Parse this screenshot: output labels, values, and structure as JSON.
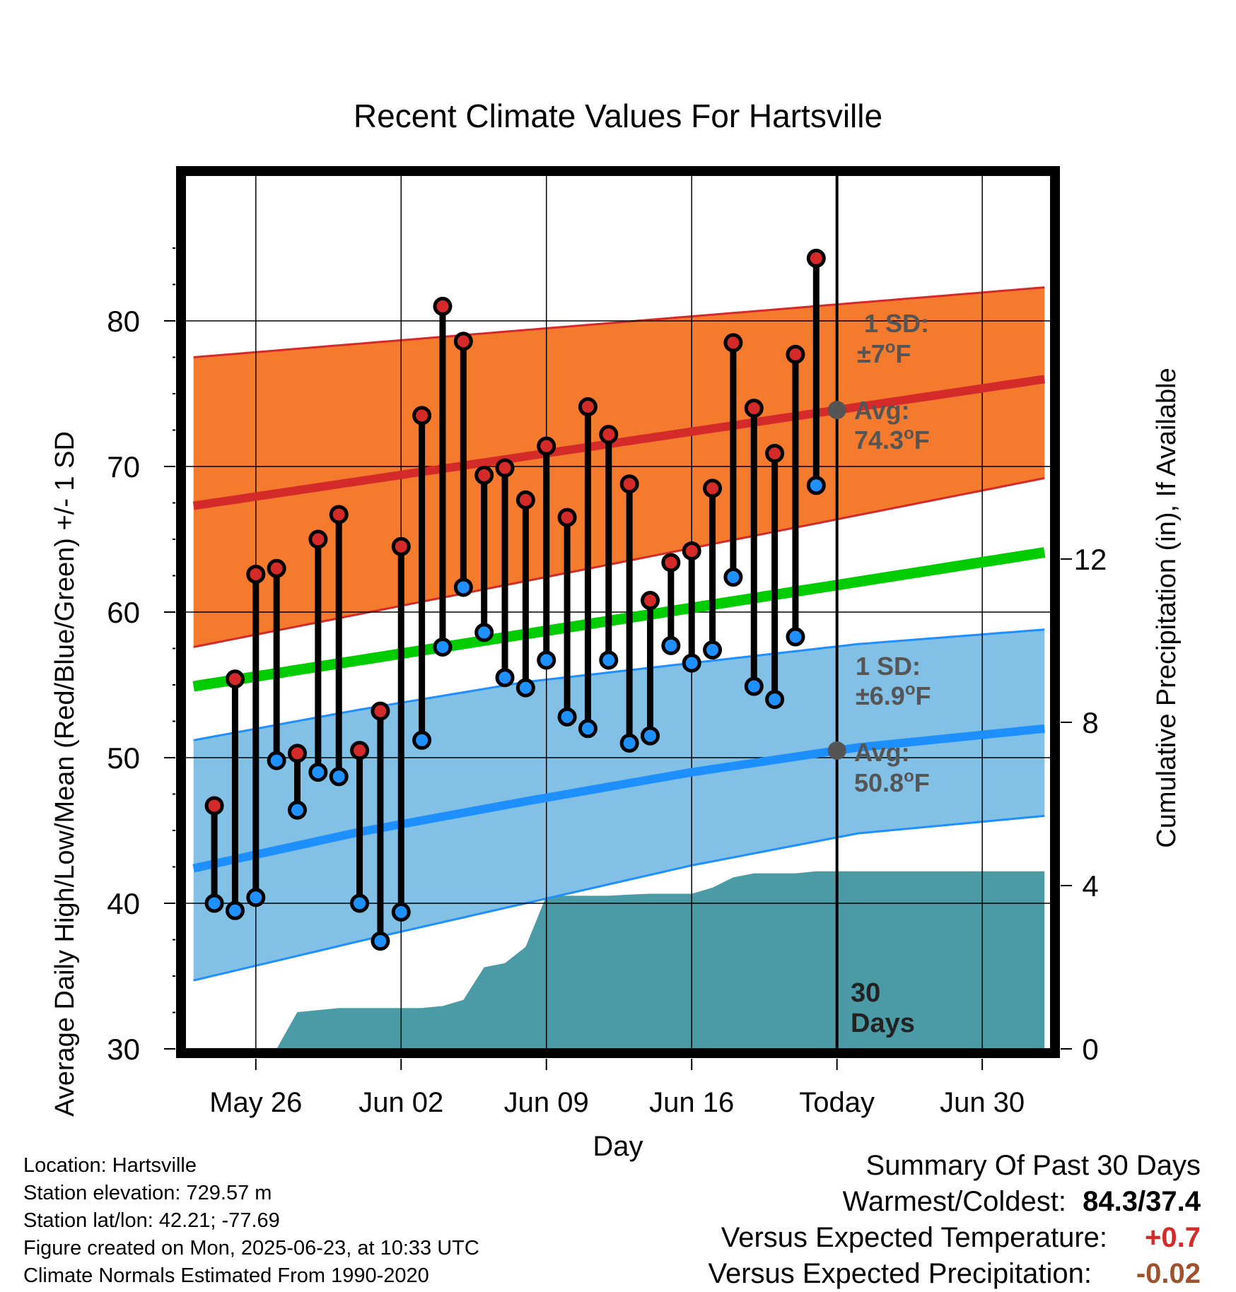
{
  "chart_data": {
    "type": "line",
    "title": "Recent Climate Values For Hartsville",
    "xlabel": "Day",
    "ylabel": "Average Daily High/Low/Mean (Red/Blue/Green) +/- 1 SD",
    "y2label": "Cumulative Precipitation (in), If Available",
    "ylim": [
      30,
      90
    ],
    "y2lim": [
      0,
      21.4
    ],
    "yticks": [
      "30",
      "40",
      "50",
      "60",
      "70",
      "80"
    ],
    "y2ticks": [
      "0",
      "4",
      "8",
      "12"
    ],
    "xticks": [
      {
        "day": 3,
        "label": "May 26"
      },
      {
        "day": 10,
        "label": "Jun 02"
      },
      {
        "day": 17,
        "label": "Jun 09"
      },
      {
        "day": 24,
        "label": "Jun 16"
      },
      {
        "day": 31,
        "label": "Today"
      },
      {
        "day": 38,
        "label": "Jun 30"
      }
    ],
    "xlim": [
      -0.4,
      41.3
    ],
    "today_day": 31,
    "days": [
      1,
      2,
      3,
      4,
      5,
      6,
      7,
      8,
      9,
      10,
      11,
      12,
      13,
      14,
      15,
      16,
      17,
      18,
      19,
      20,
      21,
      22,
      23,
      24,
      25,
      26,
      27,
      28,
      29,
      30
    ],
    "observed_high": [
      46.7,
      55.4,
      62.6,
      63.0,
      50.3,
      65.0,
      66.7,
      50.5,
      53.2,
      64.5,
      73.5,
      81.0,
      78.6,
      69.4,
      69.9,
      67.7,
      71.4,
      66.5,
      74.1,
      72.2,
      68.8,
      60.8,
      63.4,
      64.2,
      68.5,
      78.5,
      74.0,
      70.9,
      77.7,
      84.3
    ],
    "observed_low": [
      40.0,
      39.5,
      40.4,
      49.8,
      46.4,
      49.0,
      48.7,
      40.0,
      37.4,
      39.4,
      51.2,
      57.6,
      61.7,
      58.6,
      55.5,
      54.8,
      56.7,
      52.8,
      52.0,
      56.7,
      51.0,
      51.5,
      57.7,
      56.5,
      57.4,
      62.4,
      54.9,
      54.0,
      58.3,
      68.7
    ],
    "normal_mean": {
      "x": [
        0,
        41
      ],
      "y": [
        54.9,
        64.1
      ]
    },
    "normal_high": {
      "x": [
        0,
        41
      ],
      "y": [
        67.3,
        76.0
      ]
    },
    "normal_high_sd_upper": {
      "x": [
        0,
        41
      ],
      "y": [
        77.5,
        82.3
      ]
    },
    "normal_high_sd_lower": {
      "x": [
        0,
        41
      ],
      "y": [
        57.6,
        69.2
      ]
    },
    "normal_low": {
      "x": [
        0,
        8,
        16,
        24,
        32,
        41
      ],
      "y": [
        42.4,
        44.9,
        47.0,
        49.0,
        50.7,
        52.0
      ]
    },
    "normal_low_sd_upper": {
      "x": [
        0,
        8,
        16,
        24,
        32,
        41
      ],
      "y": [
        51.2,
        53.3,
        55.2,
        56.5,
        57.8,
        58.8
      ]
    },
    "normal_low_sd_lower": {
      "x": [
        0,
        8,
        16,
        24,
        32,
        41
      ],
      "y": [
        34.7,
        37.4,
        40.0,
        42.6,
        44.8,
        46.0
      ]
    },
    "precip_cumulative": {
      "x": [
        0,
        4,
        5,
        6,
        7,
        8,
        9,
        10,
        11,
        12,
        13,
        14,
        15,
        16,
        17,
        18,
        19,
        20,
        21,
        22,
        23,
        24,
        25,
        26,
        27,
        28,
        29,
        30,
        41
      ],
      "y": [
        0,
        0,
        0.9,
        0.95,
        1.0,
        1.0,
        1.0,
        1.0,
        1.0,
        1.05,
        1.2,
        2.0,
        2.1,
        2.5,
        3.75,
        3.75,
        3.75,
        3.75,
        3.78,
        3.8,
        3.8,
        3.8,
        3.95,
        4.2,
        4.3,
        4.3,
        4.3,
        4.35,
        4.35
      ]
    },
    "annotations": {
      "high_sd": {
        "line1": "1 SD:",
        "line2": "±7",
        "unit": "F"
      },
      "high_avg": {
        "line1": "Avg:",
        "value": "74.3",
        "unit": "F"
      },
      "low_sd": {
        "line1": "1 SD:",
        "line2": "±6.9",
        "unit": "F"
      },
      "low_avg": {
        "line1": "Avg:",
        "value": "50.8",
        "unit": "F"
      },
      "period": {
        "line1": "30",
        "line2": "Days"
      }
    },
    "colors": {
      "high_band": "#f47a2e",
      "high_line": "#d42a2a",
      "low_band": "#82c0e6",
      "low_line": "#1e8fff",
      "mean_line": "#00cc00",
      "precip": "#4a9ba5",
      "high_dot": "#d42a2a",
      "low_dot": "#1e90ff",
      "annotation_text": "#555555"
    },
    "grid": true
  },
  "footer": {
    "location": "Location: Hartsville",
    "elevation": "Station elevation: 729.57 m",
    "latlon": "Station lat/lon: 42.21; -77.69",
    "created": "Figure created on Mon, 2025-06-23, at 10:33 UTC",
    "normals": "Climate Normals Estimated From 1990-2020"
  },
  "summary": {
    "heading": "Summary Of Past 30 Days",
    "warm_cold_label": "Warmest/Coldest:",
    "warm_cold_value": "84.3/37.4",
    "temp_label": "Versus Expected Temperature:",
    "temp_value": "+0.7",
    "precip_label": "Versus Expected Precipitation:",
    "precip_value": "-0.02"
  }
}
